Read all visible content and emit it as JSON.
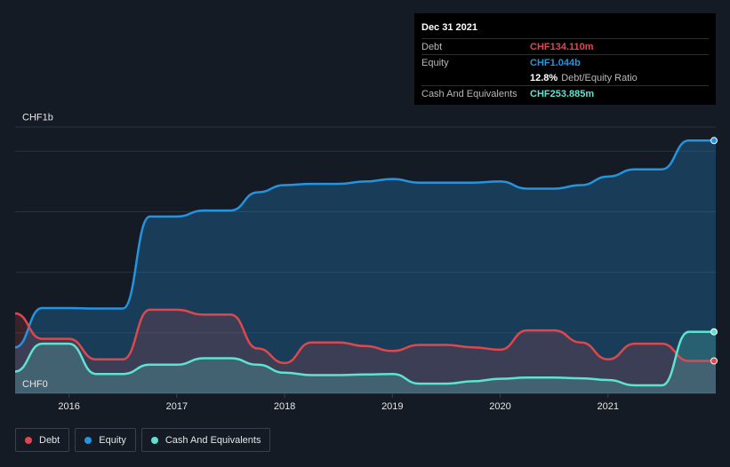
{
  "tooltip": {
    "date": "Dec 31 2021",
    "debt_label": "Debt",
    "debt_value": "CHF134.110m",
    "equity_label": "Equity",
    "equity_value": "CHF1.044b",
    "ratio_value": "12.8%",
    "ratio_label": "Debt/Equity Ratio",
    "cash_label": "Cash And Equivalents",
    "cash_value": "CHF253.885m"
  },
  "legend": {
    "debt": "Debt",
    "equity": "Equity",
    "cash": "Cash And Equivalents"
  },
  "colors": {
    "debt": "#e0474c",
    "equity": "#2394df",
    "cash": "#5ee3d0",
    "background": "#151b24"
  },
  "chart_data": {
    "type": "area",
    "y_unit": "CHF millions",
    "ylim": [
      0,
      1100
    ],
    "xlim": [
      2015.5,
      2022.0
    ],
    "y_tick_labels": [
      {
        "value": 1000,
        "label": "CHF1b"
      },
      {
        "value": 0,
        "label": "CHF0"
      }
    ],
    "x_ticks": [
      2016,
      2017,
      2018,
      2019,
      2020,
      2021
    ],
    "grid": true,
    "legend_position": "bottom-left",
    "series": [
      {
        "name": "Debt",
        "color": "#e0474c",
        "x": [
          2015.5,
          2015.75,
          2016.0,
          2016.25,
          2016.5,
          2016.75,
          2017.0,
          2017.25,
          2017.5,
          2017.75,
          2018.0,
          2018.25,
          2018.5,
          2018.75,
          2019.0,
          2019.25,
          2019.5,
          2019.75,
          2020.0,
          2020.25,
          2020.5,
          2020.75,
          2021.0,
          2021.25,
          2021.5,
          2021.75,
          2022.0
        ],
        "y": [
          330,
          225,
          225,
          140,
          140,
          345,
          345,
          325,
          325,
          185,
          125,
          210,
          210,
          195,
          175,
          200,
          200,
          190,
          180,
          260,
          260,
          210,
          140,
          205,
          205,
          134,
          134
        ]
      },
      {
        "name": "Equity",
        "color": "#2394df",
        "x": [
          2015.5,
          2015.75,
          2016.0,
          2016.25,
          2016.5,
          2016.75,
          2017.0,
          2017.25,
          2017.5,
          2017.75,
          2018.0,
          2018.25,
          2018.5,
          2018.75,
          2019.0,
          2019.25,
          2019.5,
          2019.75,
          2020.0,
          2020.25,
          2020.5,
          2020.75,
          2021.0,
          2021.25,
          2021.5,
          2021.75,
          2022.0
        ],
        "y": [
          190,
          352,
          352,
          350,
          350,
          730,
          730,
          755,
          755,
          830,
          860,
          865,
          865,
          875,
          885,
          870,
          870,
          870,
          875,
          845,
          845,
          860,
          895,
          925,
          925,
          1044,
          1044
        ]
      },
      {
        "name": "Cash And Equivalents",
        "color": "#5ee3d0",
        "x": [
          2015.5,
          2015.75,
          2016.0,
          2016.25,
          2016.5,
          2016.75,
          2017.0,
          2017.25,
          2017.5,
          2017.75,
          2018.0,
          2018.25,
          2018.5,
          2018.75,
          2019.0,
          2019.25,
          2019.5,
          2019.75,
          2020.0,
          2020.25,
          2020.5,
          2020.75,
          2021.0,
          2021.25,
          2021.5,
          2021.75,
          2022.0
        ],
        "y": [
          90,
          205,
          205,
          80,
          80,
          118,
          118,
          145,
          145,
          118,
          85,
          75,
          75,
          78,
          80,
          40,
          40,
          50,
          60,
          65,
          65,
          62,
          55,
          33,
          33,
          254,
          254
        ]
      }
    ]
  }
}
